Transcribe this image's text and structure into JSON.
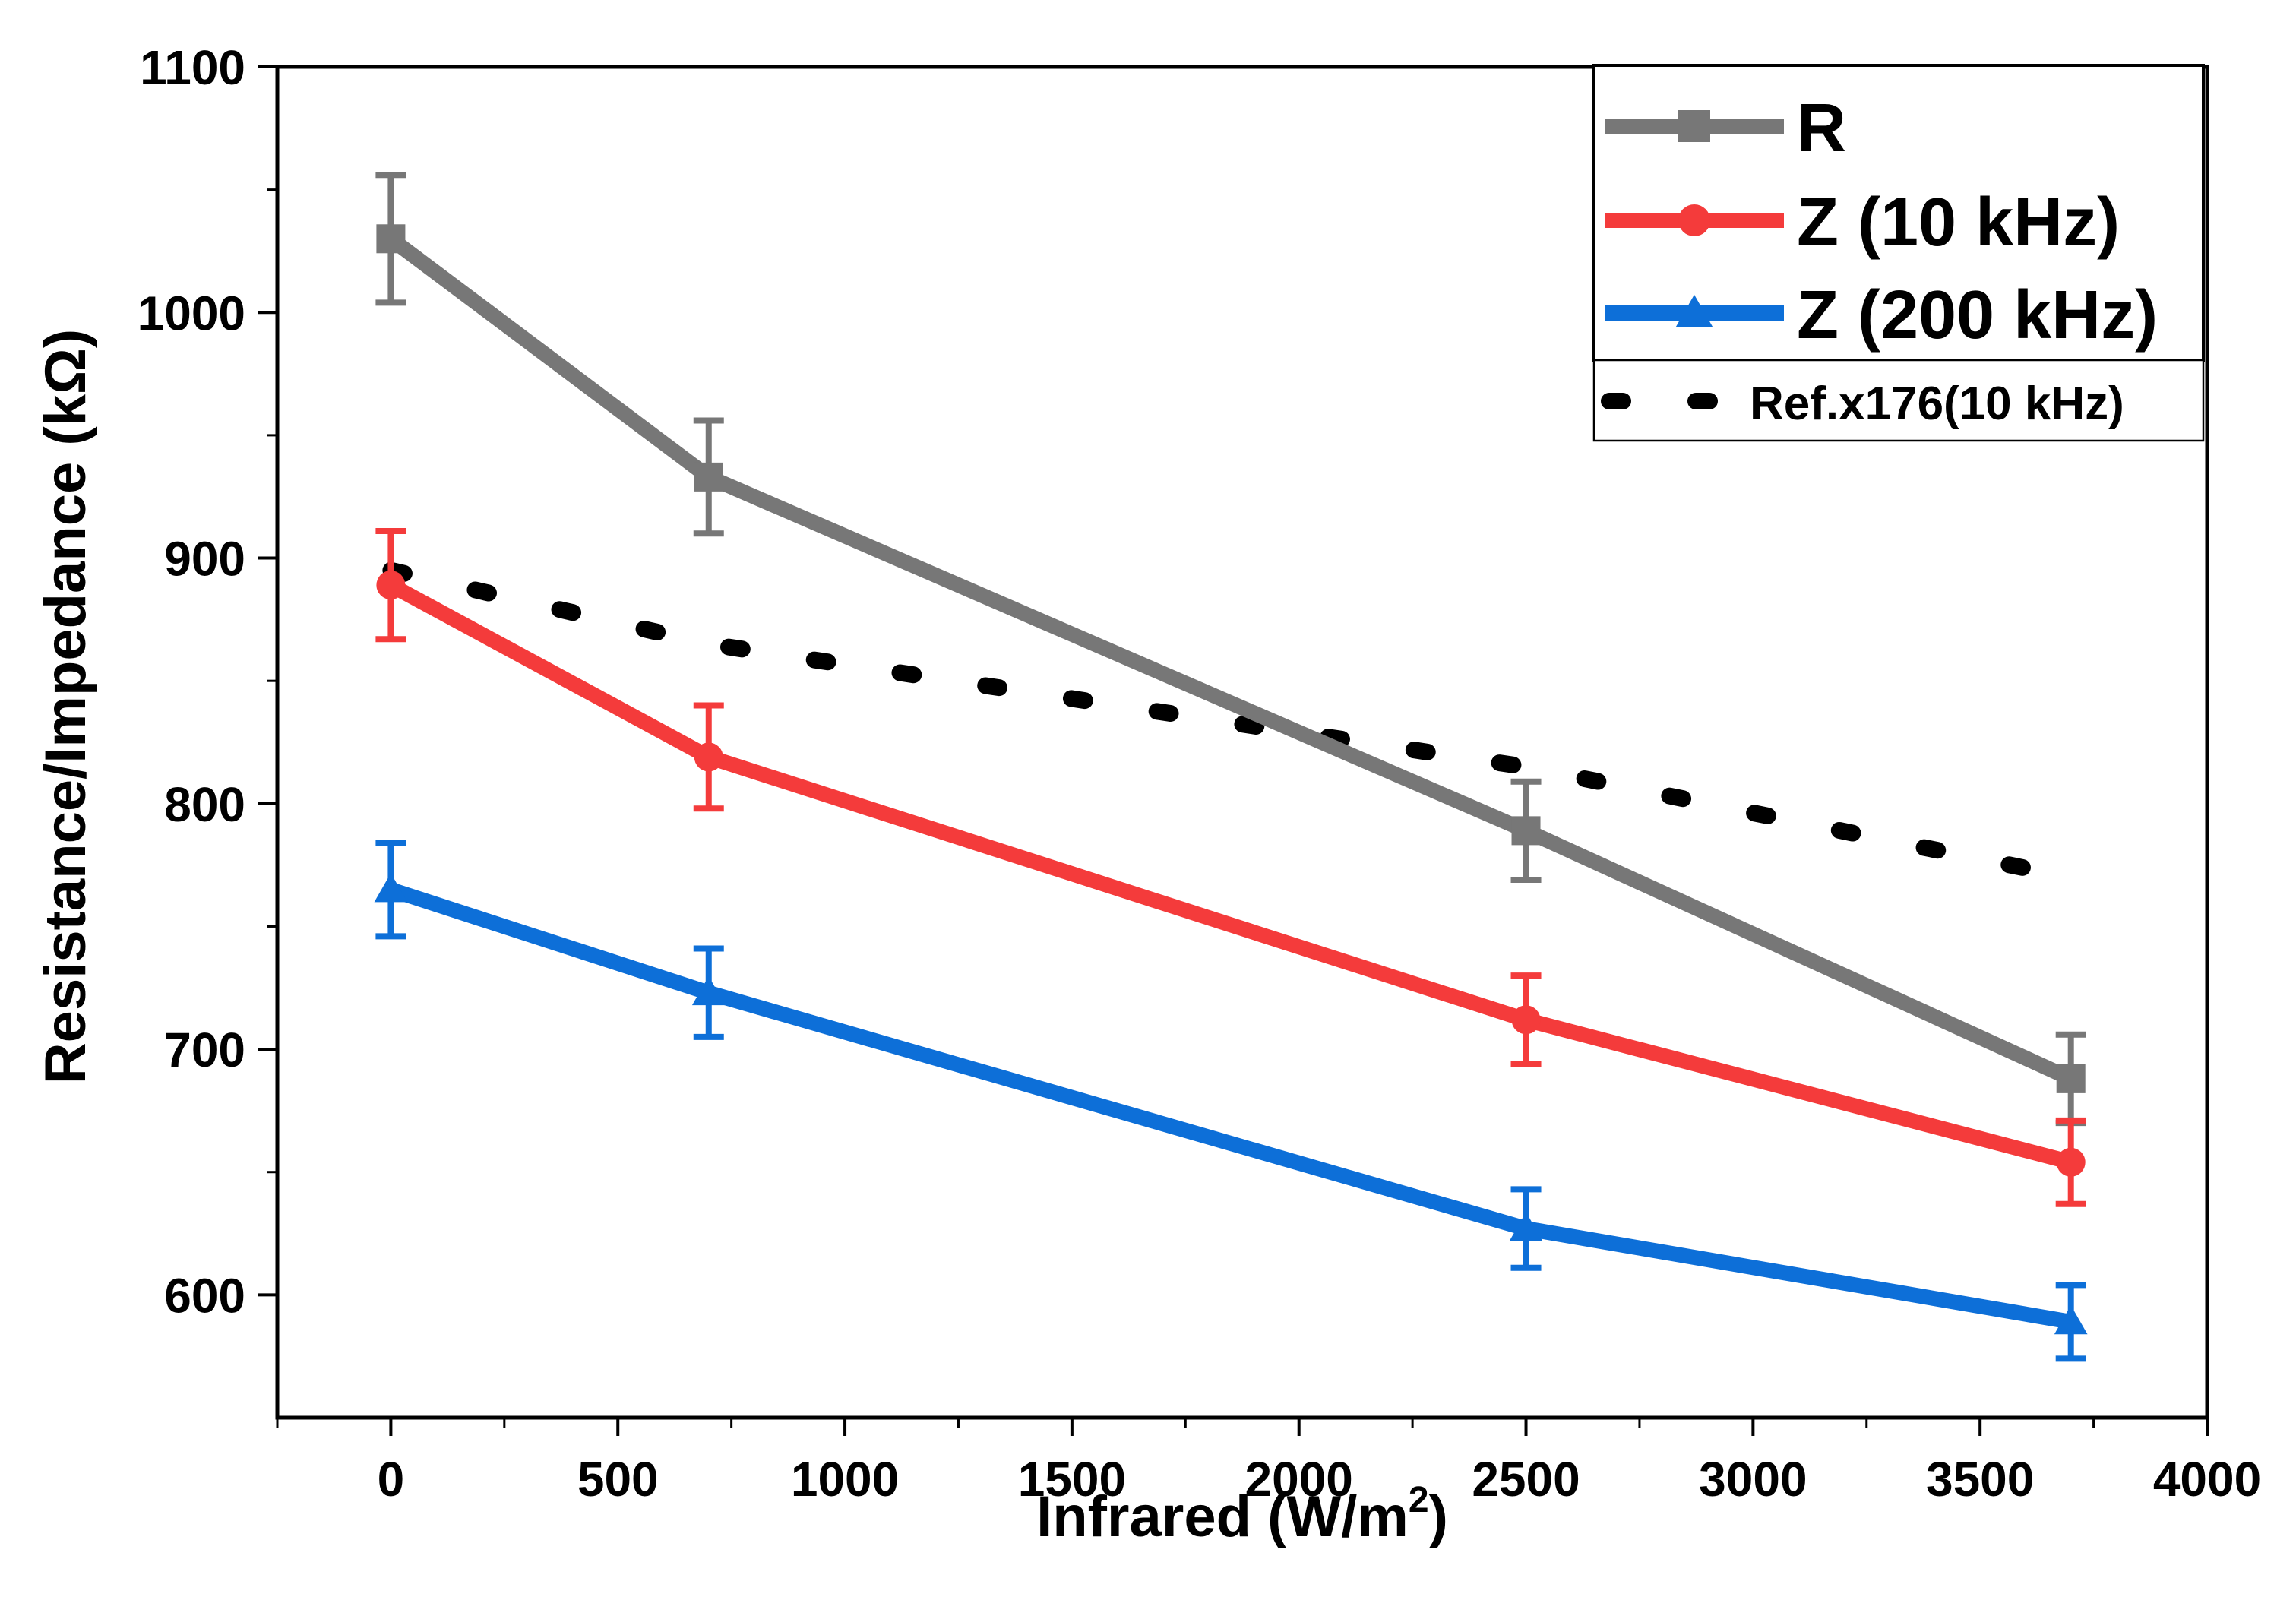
{
  "chart_data": {
    "type": "line",
    "title": "",
    "xlabel": "Infrared (W/m",
    "xlabel_superscript": "2",
    "xlabel_suffix": ")",
    "ylabel": "Resistance/Impedance (kΩ)",
    "xlim": [
      -250,
      4000
    ],
    "ylim": [
      550,
      1100
    ],
    "xticks": [
      0,
      500,
      1000,
      1500,
      2000,
      2500,
      3000,
      3500,
      4000
    ],
    "xtick_labels": [
      "0",
      "500",
      "1000",
      "1500",
      "2000",
      "2500",
      "3000",
      "3500",
      "4000"
    ],
    "yticks": [
      600,
      700,
      800,
      900,
      1000,
      1100
    ],
    "ytick_labels": [
      "600",
      "700",
      "800",
      "900",
      "1000",
      "1100"
    ],
    "grid": false,
    "legend_position": "top-right",
    "series": [
      {
        "name": "R",
        "color": "#777777",
        "marker": "square",
        "x": [
          0,
          700,
          2500,
          3700
        ],
        "y": [
          1030,
          933,
          789,
          688
        ],
        "err": [
          26,
          23,
          20,
          18
        ]
      },
      {
        "name": "Z (10 kHz)",
        "color": "#f43b3b",
        "marker": "circle",
        "x": [
          0,
          700,
          2500,
          3700
        ],
        "y": [
          889,
          819,
          712,
          654
        ],
        "err": [
          22,
          21,
          18,
          17
        ]
      },
      {
        "name": "Z (200 kHz)",
        "color": "#0d6fd8",
        "marker": "triangle",
        "x": [
          0,
          700,
          2500,
          3700
        ],
        "y": [
          765,
          723,
          627,
          589
        ],
        "err": [
          19,
          18,
          16,
          15
        ]
      },
      {
        "name": "Ref.x176(10 kHz)",
        "color": "#000000",
        "marker": "none",
        "style": "dotted",
        "x": [
          0,
          700,
          2500,
          3700
        ],
        "y": [
          895,
          865,
          815,
          770
        ]
      }
    ]
  }
}
